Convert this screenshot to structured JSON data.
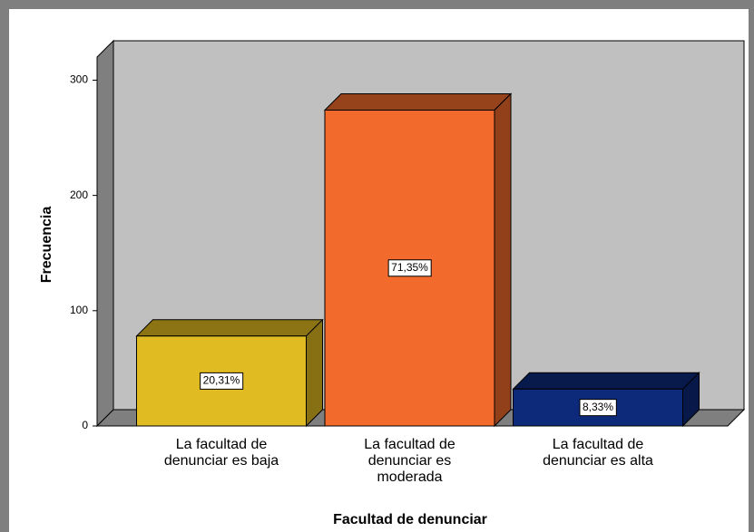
{
  "chart_data": {
    "type": "bar3d",
    "x_label": "Facultad de denunciar",
    "y_label": "Frecuencia",
    "categories": [
      "La facultad de denunciar es baja",
      "La facultad de denunciar es moderada",
      "La facultad de denunciar es alta"
    ],
    "values": [
      78,
      274,
      32
    ],
    "percentages": [
      20.31,
      71.35,
      8.33
    ],
    "percentage_labels": [
      "20,31%",
      "71,35%",
      "8,33%"
    ],
    "colors": [
      "#e1bb22",
      "#f26a2c",
      "#0d2a7a"
    ],
    "ylim": [
      0,
      320
    ],
    "yticks": [
      0,
      100,
      200,
      300
    ]
  }
}
